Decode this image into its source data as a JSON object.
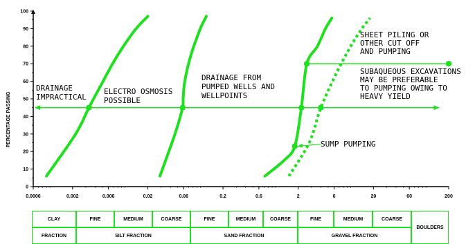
{
  "chart_data": {
    "type": "line",
    "ylabel": "PERCENTAGE PASSING",
    "y_ticks": [
      "0",
      "10",
      "20",
      "30",
      "40",
      "50",
      "60",
      "70",
      "80",
      "90",
      "100"
    ],
    "x_scale": "log",
    "x_ticks": [
      "0.0006",
      "0.002",
      "0.006",
      "0.02",
      "0.06",
      "0.2",
      "0.6",
      "2",
      "6",
      "20",
      "60",
      "200"
    ],
    "ylim": [
      0,
      100
    ],
    "xlim": [
      0.0006,
      200
    ],
    "curves": [
      {
        "style": "solid",
        "x": [
          0.0009,
          0.0022,
          0.0033,
          0.0048,
          0.0068,
          0.0095,
          0.014,
          0.02
        ],
        "y": [
          6,
          30,
          45,
          58,
          70,
          80,
          90,
          97
        ]
      },
      {
        "style": "solid",
        "x": [
          0.029,
          0.046,
          0.058,
          0.059,
          0.062,
          0.075,
          0.1,
          0.12
        ],
        "y": [
          6,
          30,
          45,
          50,
          60,
          75,
          90,
          97
        ]
      },
      {
        "style": "solid",
        "x": [
          0.72,
          1.3,
          1.8,
          2.2,
          2.6,
          3.6,
          4.6,
          5.6
        ],
        "y": [
          6,
          15,
          23,
          45,
          70,
          80,
          90,
          96
        ]
      },
      {
        "style": "dotted",
        "x": [
          1.5,
          2.8,
          4.0,
          6.5,
          10,
          14,
          18
        ],
        "y": [
          6,
          25,
          45,
          65,
          80,
          90,
          96
        ]
      }
    ],
    "lines": [
      {
        "style": "arrow-both",
        "y": 45,
        "x_from": 0.0006,
        "x_to": 150
      },
      {
        "style": "arrow-right",
        "y": 70,
        "x_from": 2.6,
        "x_to": 200
      }
    ],
    "points": [
      {
        "x": 0.0033,
        "y": 45
      },
      {
        "x": 0.058,
        "y": 45
      },
      {
        "x": 2.2,
        "y": 45
      },
      {
        "x": 4.0,
        "y": 45
      },
      {
        "x": 1.8,
        "y": 23
      },
      {
        "x": 2.6,
        "y": 70
      },
      {
        "x": 200,
        "y": 70
      }
    ],
    "annotations": {
      "drainage_impractical": [
        "DRAINAGE",
        "IMPRACTICAL"
      ],
      "electro_osmosis": [
        "ELECTRO OSMOSIS",
        "POSSIBLE"
      ],
      "pumped_wells": [
        "DRAINAGE FROM",
        "PUMPED WELLS AND",
        "WELLPOINTS"
      ],
      "sheet_piling": [
        "SHEET PILING OR",
        "OTHER CUT OFF",
        "AND PUMPING"
      ],
      "subaqueous": [
        "SUBAQUEOUS EXCAVATIONS",
        "MAY BE PREFERABLE",
        "TO PUMPING OWING TO",
        "HEAVY YIELD"
      ],
      "sump_pumping": [
        "SUMP PUMPING"
      ]
    },
    "colors": {
      "curve": "#1fe01f",
      "axis": "#000000"
    }
  },
  "classification": {
    "clay": {
      "label": "CLAY",
      "fraction": "FRACTION"
    },
    "silt": {
      "fine": "FINE",
      "medium": "MEDIUM",
      "coarse": "COARSE",
      "fraction": "SILT FRACTION"
    },
    "sand": {
      "fine": "FINE",
      "medium": "MEDIUM",
      "coarse": "COARSE",
      "fraction": "SAND FRACTION"
    },
    "gravel": {
      "fine": "FINE",
      "medium": "MEDIUM",
      "coarse": "COARSE",
      "fraction": "GRAVEL FRACTION"
    },
    "boulders": "BOULDERS"
  }
}
